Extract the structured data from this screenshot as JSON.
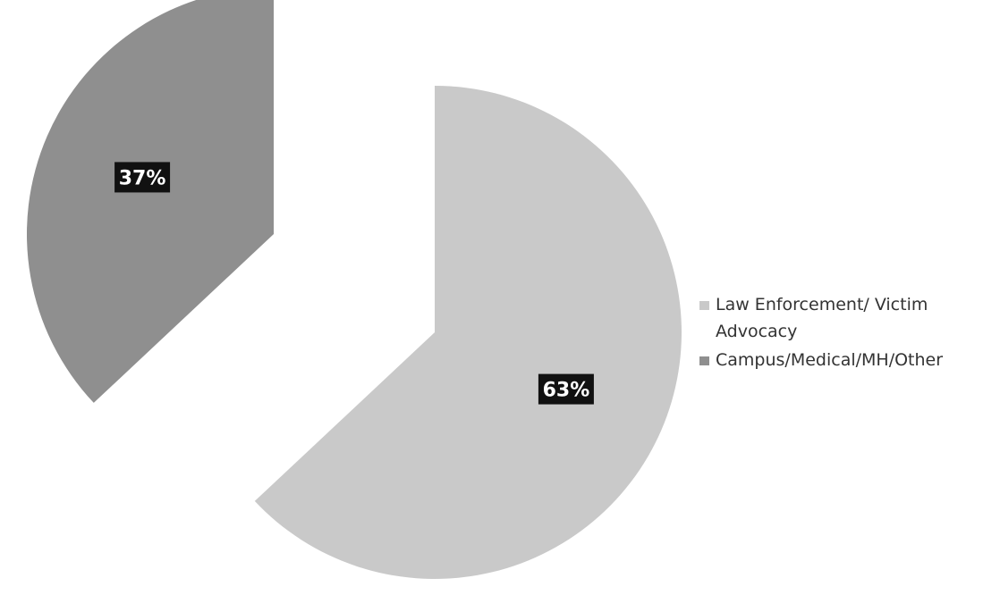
{
  "chart_data": {
    "type": "pie",
    "slices": [
      {
        "label": "Law Enforcement/ Victim Advocacy",
        "value": 63,
        "display": "63%",
        "color": "#c9c9c9"
      },
      {
        "label": "Campus/Medical/MH/Other",
        "value": 37,
        "display": "37%",
        "color": "#8f8f8f"
      }
    ],
    "legend_position": "right",
    "exploded": true
  }
}
